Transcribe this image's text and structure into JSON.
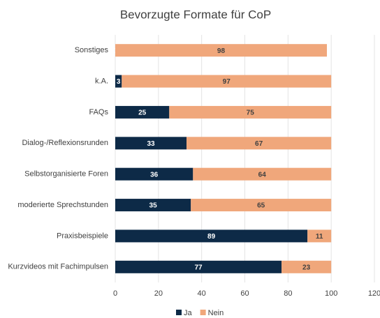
{
  "chart_data": {
    "type": "bar",
    "orientation": "horizontal",
    "stacked": true,
    "title": "Bevorzugte Formate für CoP",
    "categories": [
      "Sonstiges",
      "k.A.",
      "FAQs",
      "Dialog-/Reflexionsrunden",
      "Selbstorganisierte Foren",
      "moderierte Sprechstunden",
      "Praxisbeispiele",
      "Kurzvideos mit Fachimpulsen"
    ],
    "series": [
      {
        "name": "Ja",
        "color": "#0d2a47",
        "values": [
          0,
          3,
          25,
          33,
          36,
          35,
          89,
          77
        ]
      },
      {
        "name": "Nein",
        "color": "#f0a77b",
        "values": [
          98,
          97,
          75,
          67,
          64,
          65,
          11,
          23
        ]
      }
    ],
    "xlim": [
      0,
      120
    ],
    "xticks": [
      0,
      20,
      40,
      60,
      80,
      100,
      120
    ],
    "grid": true,
    "legend": "bottom"
  }
}
